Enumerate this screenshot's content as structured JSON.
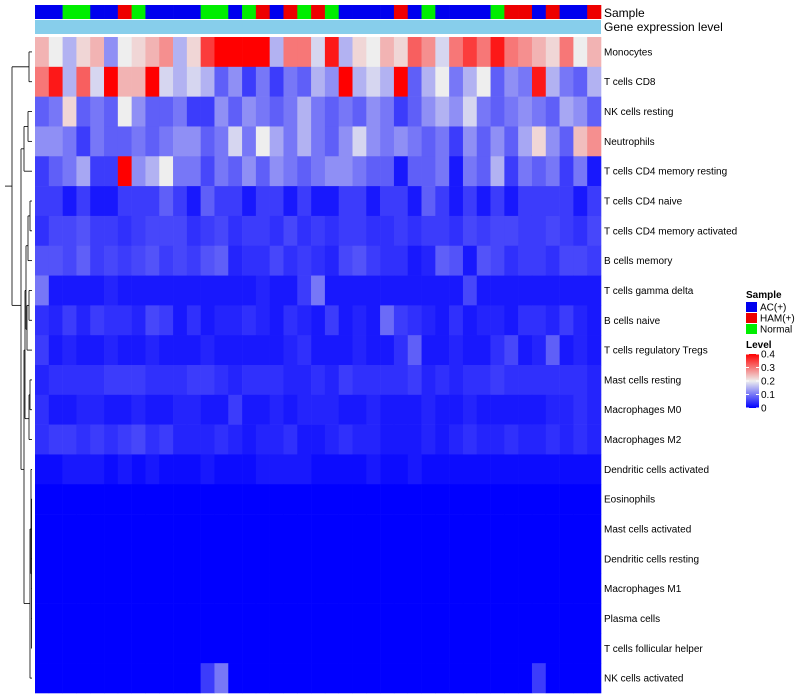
{
  "chart_data": {
    "type": "heatmap",
    "title": "",
    "annotation_rows": [
      "Sample",
      "Gene expression level"
    ],
    "row_labels": [
      "Monocytes",
      "T cells CD8",
      "NK cells resting",
      "Neutrophils",
      "T cells CD4 memory resting",
      "T cells CD4 naive",
      "T cells CD4 memory activated",
      "B cells memory",
      "T cells gamma delta",
      "B cells naive",
      "T cells regulatory  Tregs",
      "Mast cells resting",
      "Macrophages M0",
      "Macrophages M2",
      "Dendritic cells activated",
      "Eosinophils",
      "Mast cells activated",
      "Dendritic cells resting",
      "Macrophages M1",
      "Plasma cells",
      "T cells follicular helper",
      "NK cells activated"
    ],
    "sample_groups": [
      "A",
      "A",
      "N",
      "N",
      "A",
      "A",
      "H",
      "N",
      "A",
      "A",
      "A",
      "A",
      "N",
      "N",
      "A",
      "N",
      "H",
      "A",
      "H",
      "N",
      "H",
      "N",
      "A",
      "A",
      "A",
      "A",
      "H",
      "A",
      "N",
      "A",
      "A",
      "A",
      "A",
      "N",
      "H",
      "H",
      "A",
      "H",
      "A",
      "A",
      "H"
    ],
    "values": [
      [
        0.25,
        0.2,
        0.15,
        0.22,
        0.25,
        0.12,
        0.2,
        0.22,
        0.25,
        0.28,
        0.15,
        0.22,
        0.35,
        0.4,
        0.4,
        0.4,
        0.4,
        0.15,
        0.3,
        0.3,
        0.18,
        0.38,
        0.15,
        0.22,
        0.2,
        0.25,
        0.22,
        0.32,
        0.28,
        0.18,
        0.3,
        0.35,
        0.3,
        0.38,
        0.3,
        0.28,
        0.25,
        0.22,
        0.3,
        0.2,
        0.25
      ],
      [
        0.3,
        0.38,
        0.15,
        0.32,
        0.18,
        0.4,
        0.25,
        0.25,
        0.4,
        0.18,
        0.15,
        0.18,
        0.15,
        0.08,
        0.12,
        0.05,
        0.1,
        0.05,
        0.1,
        0.08,
        0.15,
        0.12,
        0.4,
        0.15,
        0.18,
        0.15,
        0.4,
        0.08,
        0.15,
        0.2,
        0.1,
        0.15,
        0.2,
        0.08,
        0.12,
        0.1,
        0.38,
        0.15,
        0.1,
        0.08,
        0.15
      ],
      [
        0.08,
        0.1,
        0.22,
        0.08,
        0.1,
        0.08,
        0.2,
        0.12,
        0.08,
        0.08,
        0.1,
        0.05,
        0.05,
        0.12,
        0.08,
        0.12,
        0.1,
        0.08,
        0.1,
        0.15,
        0.1,
        0.08,
        0.1,
        0.08,
        0.12,
        0.1,
        0.05,
        0.08,
        0.12,
        0.15,
        0.12,
        0.18,
        0.1,
        0.08,
        0.1,
        0.12,
        0.1,
        0.08,
        0.14,
        0.12,
        0.08
      ],
      [
        0.12,
        0.12,
        0.1,
        0.05,
        0.1,
        0.08,
        0.08,
        0.1,
        0.08,
        0.1,
        0.12,
        0.12,
        0.08,
        0.1,
        0.18,
        0.1,
        0.2,
        0.14,
        0.1,
        0.15,
        0.1,
        0.08,
        0.12,
        0.18,
        0.12,
        0.1,
        0.12,
        0.1,
        0.08,
        0.1,
        0.05,
        0.12,
        0.08,
        0.12,
        0.08,
        0.14,
        0.22,
        0.12,
        0.08,
        0.24,
        0.28
      ],
      [
        0.05,
        0.08,
        0.1,
        0.14,
        0.05,
        0.05,
        0.4,
        0.12,
        0.15,
        0.2,
        0.1,
        0.1,
        0.06,
        0.1,
        0.08,
        0.12,
        0.08,
        0.12,
        0.1,
        0.08,
        0.1,
        0.12,
        0.12,
        0.1,
        0.08,
        0.08,
        0.02,
        0.08,
        0.08,
        0.1,
        0.02,
        0.1,
        0.08,
        0.15,
        0.05,
        0.1,
        0.08,
        0.1,
        0.05,
        0.1,
        0.02
      ],
      [
        0.05,
        0.05,
        0.02,
        0.05,
        0.02,
        0.02,
        0.05,
        0.05,
        0.05,
        0.08,
        0.05,
        0.02,
        0.08,
        0.05,
        0.05,
        0.02,
        0.05,
        0.05,
        0.02,
        0.05,
        0.02,
        0.02,
        0.05,
        0.05,
        0.02,
        0.05,
        0.05,
        0.02,
        0.08,
        0.05,
        0.02,
        0.05,
        0.02,
        0.05,
        0.02,
        0.05,
        0.05,
        0.05,
        0.05,
        0.02,
        0.05
      ],
      [
        0.04,
        0.06,
        0.06,
        0.07,
        0.05,
        0.05,
        0.04,
        0.05,
        0.06,
        0.06,
        0.06,
        0.04,
        0.05,
        0.06,
        0.04,
        0.05,
        0.05,
        0.04,
        0.06,
        0.04,
        0.05,
        0.04,
        0.05,
        0.05,
        0.04,
        0.04,
        0.05,
        0.04,
        0.05,
        0.05,
        0.04,
        0.06,
        0.05,
        0.06,
        0.06,
        0.05,
        0.05,
        0.06,
        0.05,
        0.04,
        0.06
      ],
      [
        0.07,
        0.07,
        0.06,
        0.08,
        0.05,
        0.06,
        0.05,
        0.06,
        0.07,
        0.05,
        0.06,
        0.05,
        0.07,
        0.08,
        0.03,
        0.04,
        0.04,
        0.06,
        0.04,
        0.05,
        0.04,
        0.03,
        0.06,
        0.07,
        0.05,
        0.04,
        0.04,
        0.02,
        0.03,
        0.08,
        0.07,
        0.02,
        0.07,
        0.06,
        0.04,
        0.05,
        0.05,
        0.04,
        0.06,
        0.06,
        0.05
      ],
      [
        0.1,
        0.02,
        0.02,
        0.02,
        0.02,
        0.03,
        0.02,
        0.02,
        0.02,
        0.02,
        0.02,
        0.02,
        0.02,
        0.02,
        0.02,
        0.02,
        0.03,
        0.02,
        0.02,
        0.05,
        0.1,
        0.02,
        0.02,
        0.02,
        0.02,
        0.02,
        0.02,
        0.02,
        0.02,
        0.02,
        0.02,
        0.06,
        0.02,
        0.02,
        0.02,
        0.02,
        0.02,
        0.02,
        0.02,
        0.02,
        0.02
      ],
      [
        0.04,
        0.03,
        0.05,
        0.03,
        0.05,
        0.04,
        0.04,
        0.03,
        0.06,
        0.05,
        0.02,
        0.04,
        0.02,
        0.03,
        0.03,
        0.04,
        0.03,
        0.02,
        0.04,
        0.03,
        0.02,
        0.05,
        0.02,
        0.03,
        0.02,
        0.09,
        0.05,
        0.04,
        0.03,
        0.02,
        0.04,
        0.02,
        0.03,
        0.03,
        0.02,
        0.04,
        0.04,
        0.03,
        0.05,
        0.03,
        0.02
      ],
      [
        0.05,
        0.02,
        0.03,
        0.02,
        0.02,
        0.03,
        0.02,
        0.02,
        0.03,
        0.02,
        0.02,
        0.02,
        0.03,
        0.02,
        0.02,
        0.02,
        0.02,
        0.02,
        0.03,
        0.04,
        0.02,
        0.02,
        0.02,
        0.03,
        0.02,
        0.02,
        0.04,
        0.08,
        0.02,
        0.02,
        0.03,
        0.02,
        0.02,
        0.04,
        0.06,
        0.02,
        0.03,
        0.08,
        0.02,
        0.03,
        0.02
      ],
      [
        0.03,
        0.04,
        0.04,
        0.04,
        0.04,
        0.05,
        0.05,
        0.05,
        0.04,
        0.04,
        0.04,
        0.05,
        0.05,
        0.04,
        0.03,
        0.04,
        0.04,
        0.04,
        0.03,
        0.03,
        0.04,
        0.03,
        0.05,
        0.04,
        0.04,
        0.04,
        0.04,
        0.05,
        0.03,
        0.04,
        0.03,
        0.04,
        0.04,
        0.05,
        0.04,
        0.04,
        0.04,
        0.04,
        0.04,
        0.04,
        0.03
      ],
      [
        0.04,
        0.02,
        0.02,
        0.03,
        0.03,
        0.02,
        0.02,
        0.03,
        0.02,
        0.02,
        0.03,
        0.03,
        0.02,
        0.02,
        0.05,
        0.02,
        0.02,
        0.03,
        0.02,
        0.03,
        0.03,
        0.03,
        0.02,
        0.02,
        0.03,
        0.02,
        0.02,
        0.02,
        0.03,
        0.02,
        0.02,
        0.03,
        0.02,
        0.02,
        0.02,
        0.02,
        0.02,
        0.03,
        0.03,
        0.04,
        0.03
      ],
      [
        0.04,
        0.05,
        0.05,
        0.04,
        0.05,
        0.04,
        0.05,
        0.06,
        0.04,
        0.05,
        0.03,
        0.03,
        0.03,
        0.04,
        0.03,
        0.02,
        0.03,
        0.03,
        0.04,
        0.02,
        0.02,
        0.03,
        0.04,
        0.03,
        0.03,
        0.02,
        0.02,
        0.02,
        0.03,
        0.02,
        0.03,
        0.04,
        0.03,
        0.03,
        0.04,
        0.03,
        0.03,
        0.04,
        0.03,
        0.04,
        0.03
      ],
      [
        0.01,
        0.01,
        0.02,
        0.02,
        0.02,
        0.01,
        0.02,
        0.01,
        0.02,
        0.01,
        0.01,
        0.01,
        0.02,
        0.01,
        0.01,
        0.01,
        0.02,
        0.02,
        0.02,
        0.02,
        0.01,
        0.01,
        0.01,
        0.01,
        0.02,
        0.01,
        0.01,
        0.02,
        0.01,
        0.01,
        0.01,
        0.01,
        0.01,
        0.01,
        0.01,
        0.01,
        0.01,
        0.01,
        0.01,
        0.01,
        0.01
      ],
      [
        0.0,
        0.0,
        0.0,
        0.0,
        0.0,
        0.0,
        0.0,
        0.0,
        0.0,
        0.0,
        0.0,
        0.0,
        0.0,
        0.0,
        0.0,
        0.0,
        0.0,
        0.0,
        0.0,
        0.0,
        0.0,
        0.0,
        0.0,
        0.0,
        0.0,
        0.0,
        0.0,
        0.0,
        0.0,
        0.0,
        0.0,
        0.0,
        0.0,
        0.0,
        0.0,
        0.0,
        0.0,
        0.0,
        0.0,
        0.0,
        0.0
      ],
      [
        0.0,
        0.0,
        0.0,
        0.0,
        0.0,
        0.0,
        0.0,
        0.0,
        0.0,
        0.0,
        0.0,
        0.0,
        0.0,
        0.0,
        0.0,
        0.0,
        0.0,
        0.0,
        0.0,
        0.0,
        0.0,
        0.0,
        0.0,
        0.0,
        0.0,
        0.0,
        0.0,
        0.0,
        0.0,
        0.0,
        0.0,
        0.0,
        0.0,
        0.0,
        0.0,
        0.0,
        0.0,
        0.0,
        0.0,
        0.0,
        0.0
      ],
      [
        0.0,
        0.0,
        0.0,
        0.0,
        0.0,
        0.0,
        0.0,
        0.0,
        0.0,
        0.0,
        0.0,
        0.0,
        0.0,
        0.0,
        0.0,
        0.0,
        0.0,
        0.0,
        0.0,
        0.0,
        0.0,
        0.0,
        0.0,
        0.0,
        0.0,
        0.0,
        0.0,
        0.0,
        0.0,
        0.0,
        0.0,
        0.0,
        0.0,
        0.0,
        0.0,
        0.0,
        0.0,
        0.0,
        0.0,
        0.0,
        0.0
      ],
      [
        0.0,
        0.0,
        0.0,
        0.0,
        0.0,
        0.0,
        0.0,
        0.0,
        0.0,
        0.0,
        0.0,
        0.0,
        0.0,
        0.0,
        0.0,
        0.0,
        0.0,
        0.0,
        0.0,
        0.0,
        0.0,
        0.0,
        0.0,
        0.0,
        0.0,
        0.0,
        0.0,
        0.0,
        0.0,
        0.0,
        0.0,
        0.0,
        0.0,
        0.0,
        0.0,
        0.0,
        0.0,
        0.0,
        0.0,
        0.0,
        0.0
      ],
      [
        0.0,
        0.0,
        0.0,
        0.0,
        0.0,
        0.0,
        0.0,
        0.0,
        0.0,
        0.0,
        0.0,
        0.0,
        0.0,
        0.0,
        0.0,
        0.0,
        0.0,
        0.0,
        0.0,
        0.0,
        0.0,
        0.0,
        0.0,
        0.0,
        0.0,
        0.0,
        0.0,
        0.0,
        0.0,
        0.0,
        0.0,
        0.0,
        0.0,
        0.0,
        0.0,
        0.0,
        0.0,
        0.0,
        0.0,
        0.0,
        0.0
      ],
      [
        0.0,
        0.0,
        0.0,
        0.0,
        0.0,
        0.0,
        0.0,
        0.0,
        0.0,
        0.0,
        0.0,
        0.0,
        0.0,
        0.0,
        0.0,
        0.0,
        0.0,
        0.0,
        0.0,
        0.0,
        0.0,
        0.0,
        0.0,
        0.0,
        0.0,
        0.0,
        0.0,
        0.0,
        0.0,
        0.0,
        0.0,
        0.0,
        0.0,
        0.0,
        0.0,
        0.0,
        0.0,
        0.0,
        0.0,
        0.0,
        0.0
      ],
      [
        0.0,
        0.0,
        0.0,
        0.0,
        0.0,
        0.0,
        0.0,
        0.0,
        0.0,
        0.0,
        0.0,
        0.0,
        0.05,
        0.1,
        0.0,
        0.0,
        0.0,
        0.0,
        0.0,
        0.0,
        0.0,
        0.0,
        0.0,
        0.0,
        0.0,
        0.0,
        0.0,
        0.0,
        0.0,
        0.0,
        0.0,
        0.0,
        0.0,
        0.0,
        0.0,
        0.0,
        0.05,
        0.0,
        0.0,
        0.0,
        0.0
      ]
    ],
    "legend_sample": {
      "title": "Sample",
      "entries": [
        {
          "key": "A",
          "label": "AC(+)",
          "color": "#0000EE"
        },
        {
          "key": "H",
          "label": "HAM(+)",
          "color": "#EE0000"
        },
        {
          "key": "N",
          "label": "Normal",
          "color": "#00EE00"
        }
      ]
    },
    "legend_level": {
      "title": "Level",
      "ticks": [
        "0",
        "0.1",
        "0.2",
        "0.3",
        "0.4"
      ],
      "range": [
        0,
        0.4
      ]
    },
    "expression_color": "#87CEEB",
    "color_low": "#0000FF",
    "color_mid": "#EEEEEE",
    "color_high": "#FF0000"
  }
}
